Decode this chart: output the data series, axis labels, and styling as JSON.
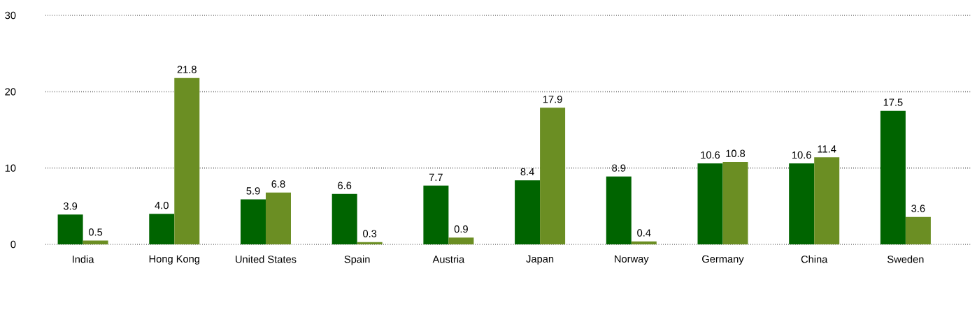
{
  "chart_data": {
    "type": "bar",
    "categories": [
      "India",
      "Hong Kong",
      "United States",
      "Spain",
      "Austria",
      "Japan",
      "Norway",
      "Germany",
      "China",
      "Sweden"
    ],
    "series": [
      {
        "color": "#006400",
        "values": [
          3.9,
          4.0,
          5.9,
          6.6,
          7.7,
          8.4,
          8.9,
          10.6,
          10.6,
          17.5
        ],
        "value_labels": [
          "3.9",
          "4.0",
          "5.9",
          "6.6",
          "7.7",
          "8.4",
          "8.9",
          "10.6",
          "10.6",
          "17.5"
        ]
      },
      {
        "color": "#6b8e23",
        "values": [
          0.5,
          21.8,
          6.8,
          0.3,
          0.9,
          17.9,
          0.4,
          10.8,
          11.4,
          3.6
        ],
        "value_labels": [
          "0.5",
          "21.8",
          "6.8",
          "0.3",
          "0.9",
          "17.9",
          "0.4",
          "10.8",
          "11.4",
          "3.6"
        ]
      }
    ],
    "ylim": [
      0,
      30
    ],
    "yticks": [
      0,
      10,
      20,
      30
    ],
    "grid": "y"
  }
}
